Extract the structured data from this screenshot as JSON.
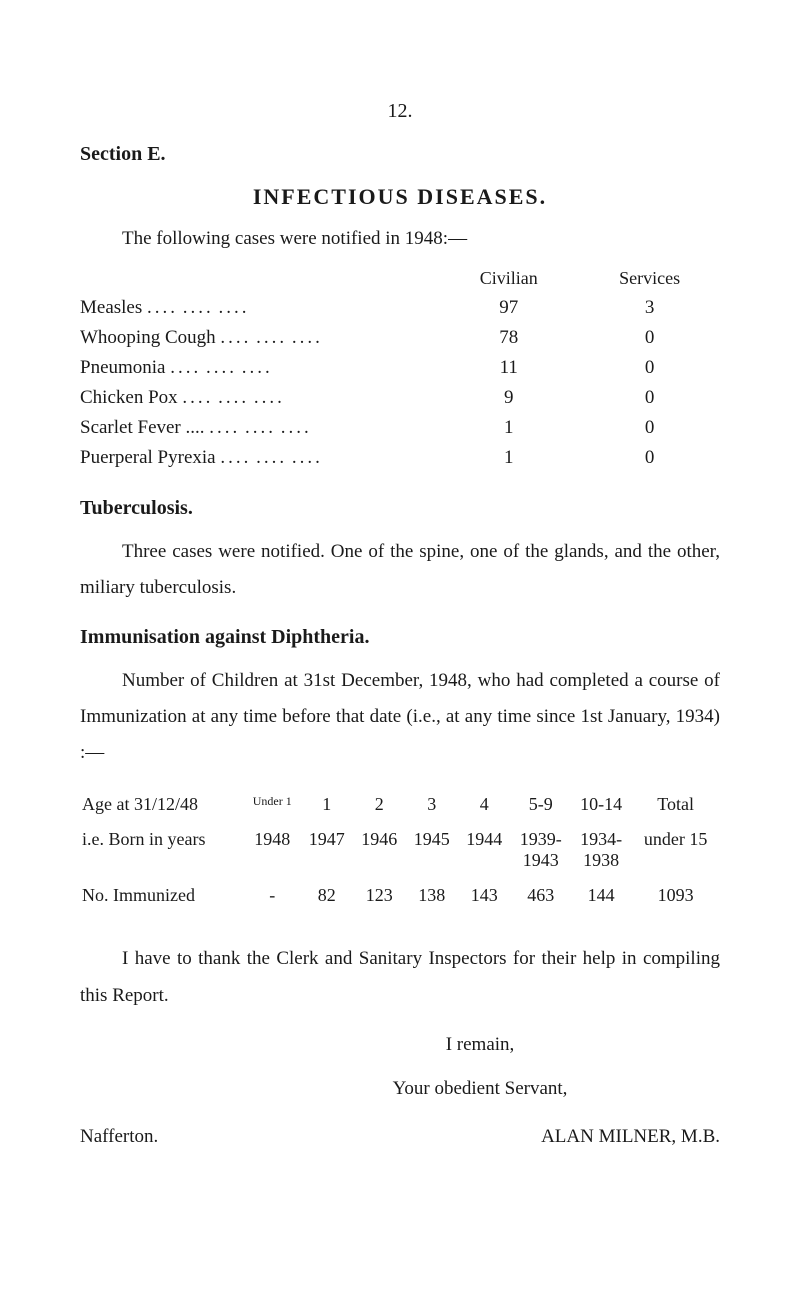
{
  "page_number": "12.",
  "section_label": "Section E.",
  "main_title": "INFECTIOUS DISEASES.",
  "intro": "The following cases were notified in 1948:—",
  "table_headers": {
    "civilian": "Civilian",
    "services": "Services"
  },
  "diseases": [
    {
      "name": "Measles",
      "civilian": "97",
      "services": "3"
    },
    {
      "name": "Whooping Cough",
      "civilian": "78",
      "services": "0"
    },
    {
      "name": "Pneumonia",
      "civilian": "11",
      "services": "0"
    },
    {
      "name": "Chicken Pox",
      "civilian": "9",
      "services": "0"
    },
    {
      "name": "Scarlet Fever ....",
      "civilian": "1",
      "services": "0"
    },
    {
      "name": "Puerperal Pyrexia",
      "civilian": "1",
      "services": "0"
    }
  ],
  "tuberculosis_head": "Tuberculosis.",
  "tuberculosis_para": "Three cases were notified. One of the spine, one of the glands, and the other, miliary tuberculosis.",
  "immunisation_head": "Immunisation against Diphtheria.",
  "immunisation_para": "Number of Children at 31st December, 1948, who had completed a course of Immunization at any time before that date (i.e., at any time since 1st January, 1934) :—",
  "age_labels": {
    "row1": "Age at 31/12/48",
    "row2": "i.e. Born in years",
    "row3": "No. Immunized"
  },
  "age_columns": {
    "headers": [
      "Under 1",
      "1",
      "2",
      "3",
      "4",
      "5-9",
      "10-14",
      "Total"
    ],
    "years": [
      "1948",
      "1947",
      "1946",
      "1945",
      "1944",
      "1939-\n1943",
      "1934-\n1938",
      "under 15"
    ],
    "immunized": [
      "-",
      "82",
      "123",
      "138",
      "143",
      "463",
      "144",
      "1093"
    ]
  },
  "thanks_para": "I have to thank the Clerk and Sanitary Inspectors for their help in compiling this Report.",
  "closing_remain": "I remain,",
  "closing_servant": "Your obedient Servant,",
  "place": "Nafferton.",
  "signature": "ALAN MILNER, M.B."
}
